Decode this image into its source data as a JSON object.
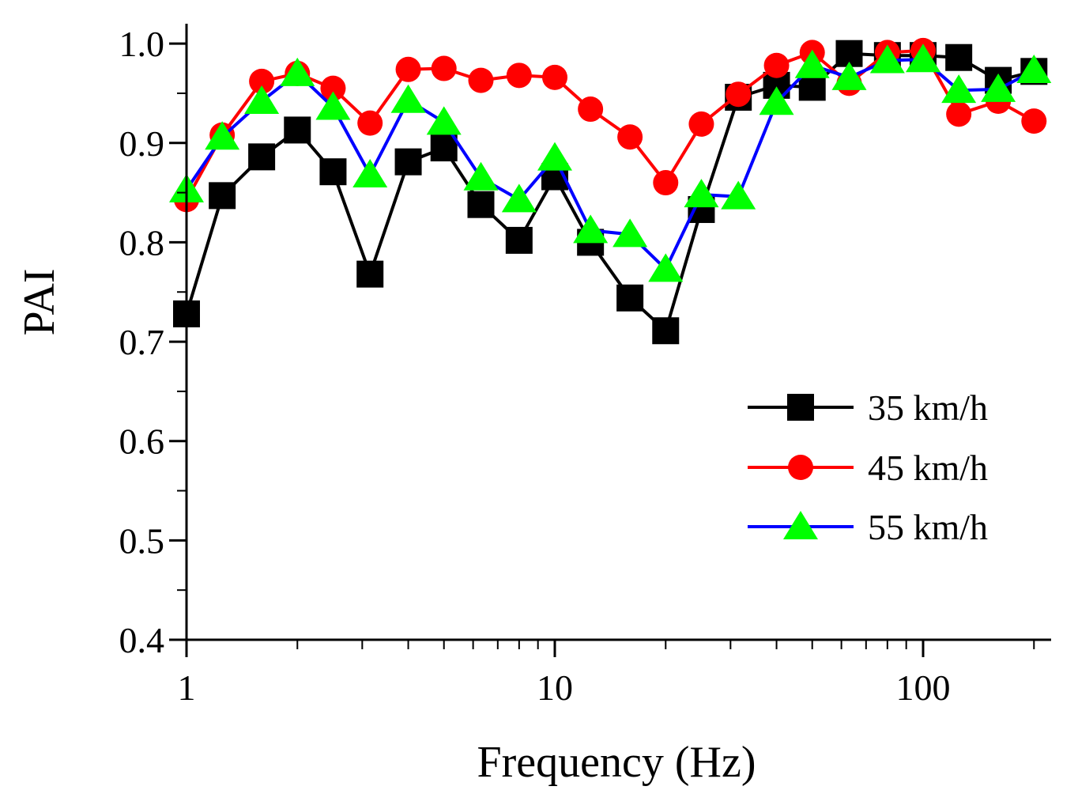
{
  "chart_data": {
    "type": "line",
    "title": "",
    "xlabel": "Frequency (Hz)",
    "ylabel": "PAI",
    "xscale": "log",
    "xlim": [
      1,
      220
    ],
    "ylim": [
      0.4,
      1.02
    ],
    "xticks": [
      {
        "value": 1,
        "label": "1"
      },
      {
        "value": 10,
        "label": "10"
      },
      {
        "value": 100,
        "label": "100"
      }
    ],
    "yticks": [
      {
        "value": 0.4,
        "label": "0.4"
      },
      {
        "value": 0.5,
        "label": "0.5"
      },
      {
        "value": 0.6,
        "label": "0.6"
      },
      {
        "value": 0.7,
        "label": "0.7"
      },
      {
        "value": 0.8,
        "label": "0.8"
      },
      {
        "value": 0.9,
        "label": "0.9"
      },
      {
        "value": 1.0,
        "label": "1.0"
      }
    ],
    "legend_position": "right-middle",
    "x": [
      1,
      1.25,
      1.6,
      2,
      2.5,
      3.15,
      4,
      5,
      6.3,
      8,
      10,
      12.5,
      16,
      20,
      25,
      31.5,
      40,
      50,
      63,
      80,
      100,
      125,
      160,
      200
    ],
    "series": [
      {
        "name": "35 km/h",
        "line_color": "#000000",
        "marker_color": "#000000",
        "marker": "square",
        "values": [
          0.728,
          0.847,
          0.886,
          0.913,
          0.871,
          0.768,
          0.881,
          0.895,
          0.838,
          0.802,
          0.866,
          0.8,
          0.744,
          0.711,
          0.833,
          0.946,
          0.958,
          0.956,
          0.99,
          0.988,
          0.988,
          0.986,
          0.963,
          0.972
        ]
      },
      {
        "name": "45 km/h",
        "line_color": "#ff0000",
        "marker_color": "#ff0000",
        "marker": "circle",
        "values": [
          0.843,
          0.908,
          0.962,
          0.97,
          0.955,
          0.92,
          0.974,
          0.975,
          0.963,
          0.968,
          0.966,
          0.934,
          0.906,
          0.86,
          0.919,
          0.949,
          0.978,
          0.991,
          0.96,
          0.991,
          0.993,
          0.929,
          0.942,
          0.922
        ]
      },
      {
        "name": "55 km/h",
        "line_color": "#0000ff",
        "marker_color": "#00ff00",
        "marker": "triangle",
        "values": [
          0.853,
          0.906,
          0.942,
          0.97,
          0.936,
          0.868,
          0.943,
          0.921,
          0.865,
          0.843,
          0.885,
          0.812,
          0.808,
          0.773,
          0.848,
          0.846,
          0.941,
          0.978,
          0.966,
          0.983,
          0.984,
          0.953,
          0.954,
          0.973
        ]
      }
    ]
  }
}
